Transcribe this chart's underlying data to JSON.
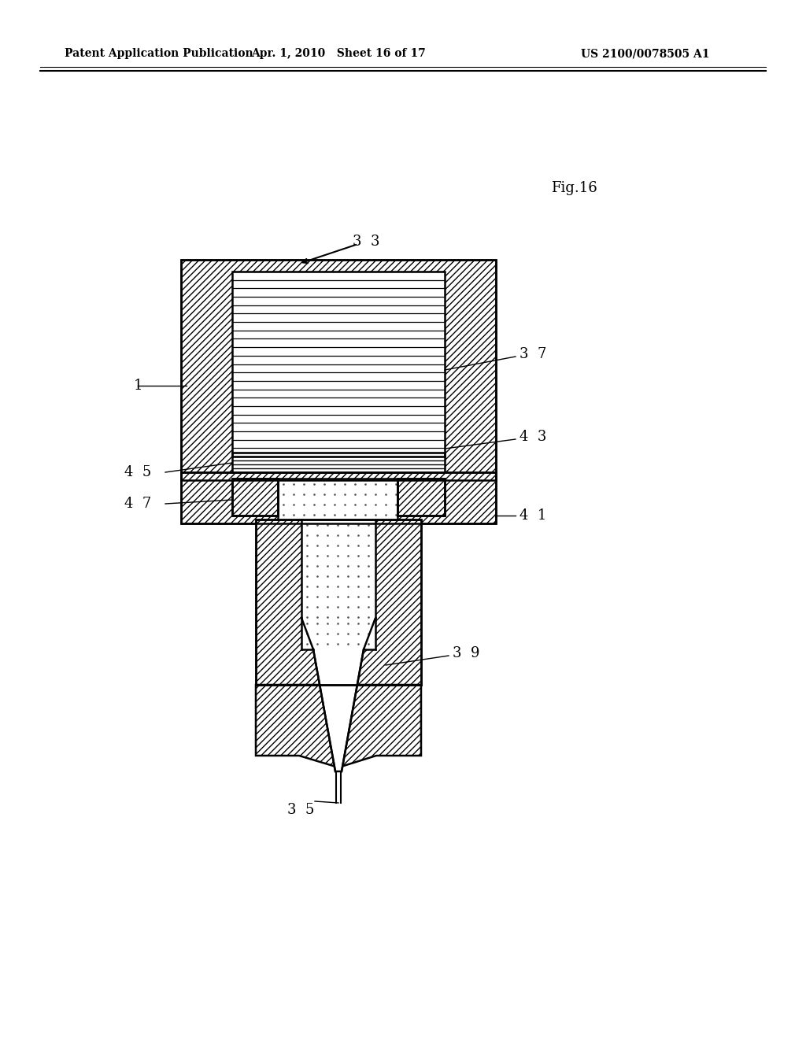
{
  "title_left": "Patent Application Publication",
  "title_mid": "Apr. 1, 2010   Sheet 16 of 17",
  "title_right": "US 2100/0078505 A1",
  "fig_label": "Fig.16",
  "bg_color": "#ffffff",
  "line_color": "#000000"
}
